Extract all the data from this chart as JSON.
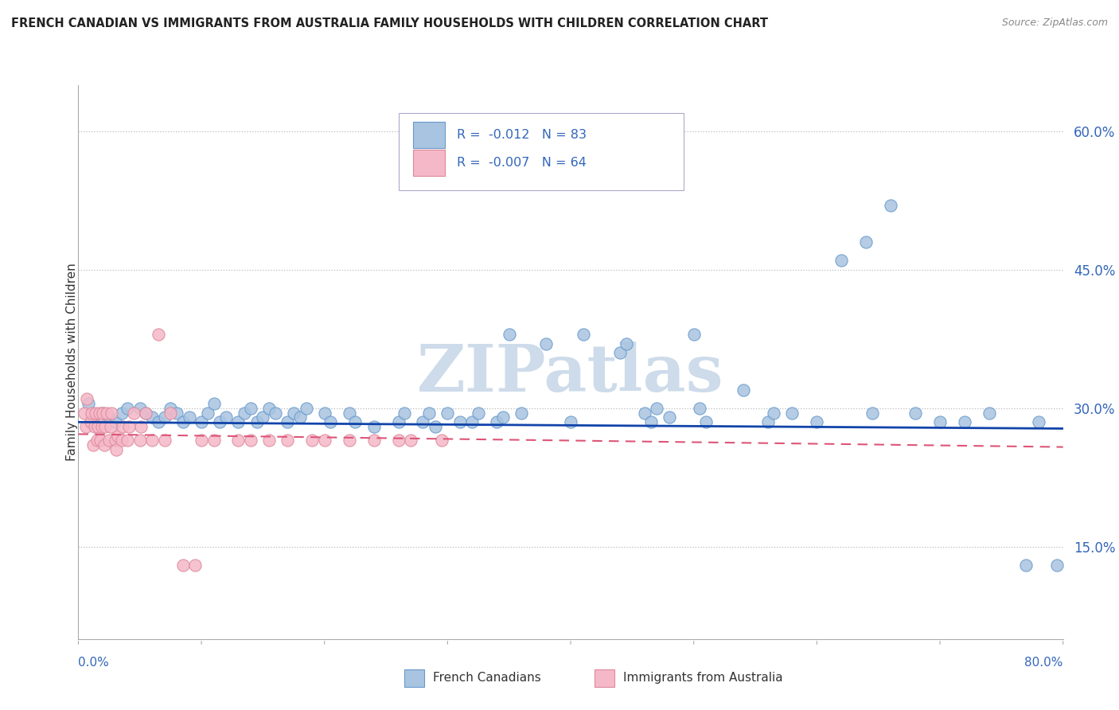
{
  "title": "FRENCH CANADIAN VS IMMIGRANTS FROM AUSTRALIA FAMILY HOUSEHOLDS WITH CHILDREN CORRELATION CHART",
  "source": "Source: ZipAtlas.com",
  "ylabel": "Family Households with Children",
  "yticks_labels": [
    "60.0%",
    "45.0%",
    "30.0%",
    "15.0%"
  ],
  "ytick_vals": [
    0.6,
    0.45,
    0.3,
    0.15
  ],
  "xlim": [
    0.0,
    0.8
  ],
  "ylim": [
    0.05,
    0.65
  ],
  "legend_r1": "R =  -0.012   N = 83",
  "legend_r2": "R =  -0.007   N = 64",
  "blue_color": "#A8C4E0",
  "blue_edge": "#6699CC",
  "pink_color": "#F5B8C8",
  "pink_edge": "#DD8899",
  "trend_blue": "#1144AA",
  "trend_pink": "#DD5577",
  "watermark": "ZIPatlas",
  "watermark_color": "#C8D8E8",
  "blue_scatter_x": [
    0.008,
    0.012,
    0.02,
    0.025,
    0.03,
    0.035,
    0.04,
    0.05,
    0.055,
    0.06,
    0.065,
    0.07,
    0.075,
    0.08,
    0.085,
    0.09,
    0.1,
    0.105,
    0.11,
    0.115,
    0.12,
    0.13,
    0.135,
    0.14,
    0.145,
    0.15,
    0.155,
    0.16,
    0.17,
    0.175,
    0.18,
    0.185,
    0.2,
    0.205,
    0.22,
    0.225,
    0.24,
    0.26,
    0.265,
    0.28,
    0.285,
    0.29,
    0.3,
    0.31,
    0.32,
    0.325,
    0.34,
    0.345,
    0.35,
    0.36,
    0.38,
    0.4,
    0.41,
    0.44,
    0.445,
    0.46,
    0.465,
    0.47,
    0.48,
    0.5,
    0.505,
    0.51,
    0.54,
    0.56,
    0.565,
    0.58,
    0.6,
    0.62,
    0.64,
    0.645,
    0.66,
    0.68,
    0.7,
    0.72,
    0.74,
    0.77,
    0.78,
    0.795
  ],
  "blue_scatter_y": [
    0.305,
    0.285,
    0.295,
    0.29,
    0.285,
    0.295,
    0.3,
    0.3,
    0.295,
    0.29,
    0.285,
    0.29,
    0.3,
    0.295,
    0.285,
    0.29,
    0.285,
    0.295,
    0.305,
    0.285,
    0.29,
    0.285,
    0.295,
    0.3,
    0.285,
    0.29,
    0.3,
    0.295,
    0.285,
    0.295,
    0.29,
    0.3,
    0.295,
    0.285,
    0.295,
    0.285,
    0.28,
    0.285,
    0.295,
    0.285,
    0.295,
    0.28,
    0.295,
    0.285,
    0.285,
    0.295,
    0.285,
    0.29,
    0.38,
    0.295,
    0.37,
    0.285,
    0.38,
    0.36,
    0.37,
    0.295,
    0.285,
    0.3,
    0.29,
    0.38,
    0.3,
    0.285,
    0.32,
    0.285,
    0.295,
    0.295,
    0.285,
    0.46,
    0.48,
    0.295,
    0.52,
    0.295,
    0.285,
    0.285,
    0.295,
    0.13,
    0.285,
    0.13
  ],
  "pink_scatter_x": [
    0.005,
    0.006,
    0.007,
    0.01,
    0.011,
    0.012,
    0.013,
    0.014,
    0.015,
    0.016,
    0.017,
    0.018,
    0.019,
    0.02,
    0.021,
    0.022,
    0.023,
    0.025,
    0.026,
    0.027,
    0.03,
    0.031,
    0.032,
    0.035,
    0.036,
    0.04,
    0.041,
    0.045,
    0.05,
    0.051,
    0.055,
    0.06,
    0.065,
    0.07,
    0.075,
    0.085,
    0.095,
    0.1,
    0.11,
    0.13,
    0.14,
    0.155,
    0.17,
    0.19,
    0.2,
    0.22,
    0.24,
    0.26,
    0.27,
    0.295
  ],
  "pink_scatter_y": [
    0.295,
    0.28,
    0.31,
    0.285,
    0.295,
    0.26,
    0.28,
    0.295,
    0.265,
    0.28,
    0.295,
    0.265,
    0.28,
    0.295,
    0.26,
    0.28,
    0.295,
    0.265,
    0.28,
    0.295,
    0.265,
    0.255,
    0.27,
    0.265,
    0.28,
    0.265,
    0.28,
    0.295,
    0.265,
    0.28,
    0.295,
    0.265,
    0.38,
    0.265,
    0.295,
    0.13,
    0.13,
    0.265,
    0.265,
    0.265,
    0.265,
    0.265,
    0.265,
    0.265,
    0.265,
    0.265,
    0.265,
    0.265,
    0.265,
    0.265
  ],
  "blue_trend_x0": 0.0,
  "blue_trend_x1": 0.8,
  "blue_trend_y0": 0.285,
  "blue_trend_y1": 0.278,
  "pink_trend_x0": 0.0,
  "pink_trend_x1": 0.8,
  "pink_trend_y0": 0.272,
  "pink_trend_y1": 0.258
}
